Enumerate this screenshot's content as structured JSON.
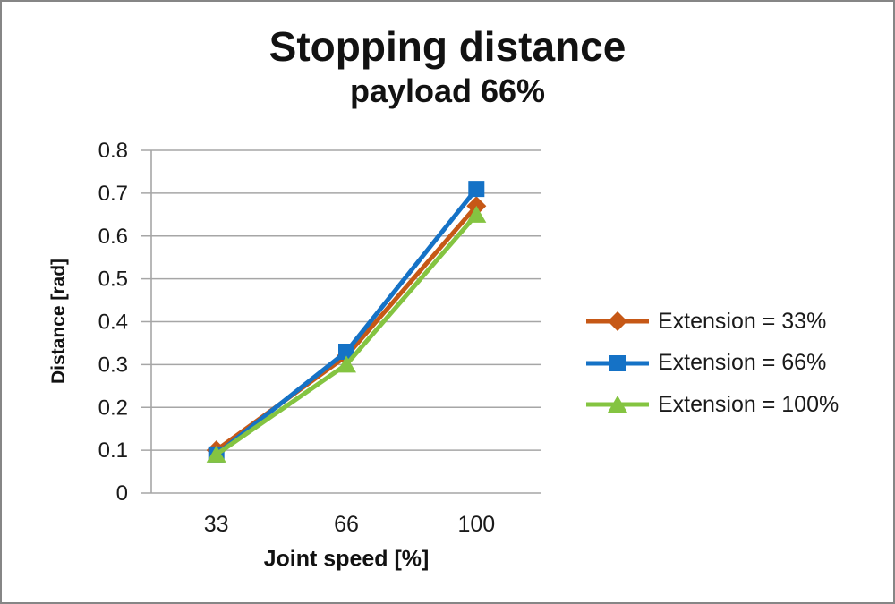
{
  "title": "Stopping distance",
  "subtitle": "payload 66%",
  "colors": {
    "series_orange": "#C65816",
    "series_blue": "#1572C6",
    "series_green": "#84C441",
    "gridline": "#A6A6A6",
    "text": "#1A1A1A",
    "frame_border": "#868686",
    "background": "#FFFFFF"
  },
  "chart_data": {
    "type": "line",
    "title": "Stopping distance",
    "subtitle": "payload 66%",
    "xlabel": "Joint speed [%]",
    "ylabel": "Distance [rad]",
    "categories": [
      "33",
      "66",
      "100"
    ],
    "series": [
      {
        "name": "Extension = 33%",
        "values": [
          0.1,
          0.32,
          0.67
        ],
        "color": "#C65816",
        "marker": "diamond"
      },
      {
        "name": "Extension = 66%",
        "values": [
          0.09,
          0.33,
          0.71
        ],
        "color": "#1572C6",
        "marker": "square"
      },
      {
        "name": "Extension = 100%",
        "values": [
          0.09,
          0.3,
          0.65
        ],
        "color": "#84C441",
        "marker": "triangle"
      }
    ],
    "ylim": [
      0,
      0.8
    ],
    "ytick_step": 0.1,
    "yticks": [
      "0.8",
      "0.7",
      "0.6",
      "0.5",
      "0.4",
      "0.3",
      "0.2",
      "0.1",
      "0"
    ],
    "grid": "horizontal",
    "legend_position": "right"
  }
}
